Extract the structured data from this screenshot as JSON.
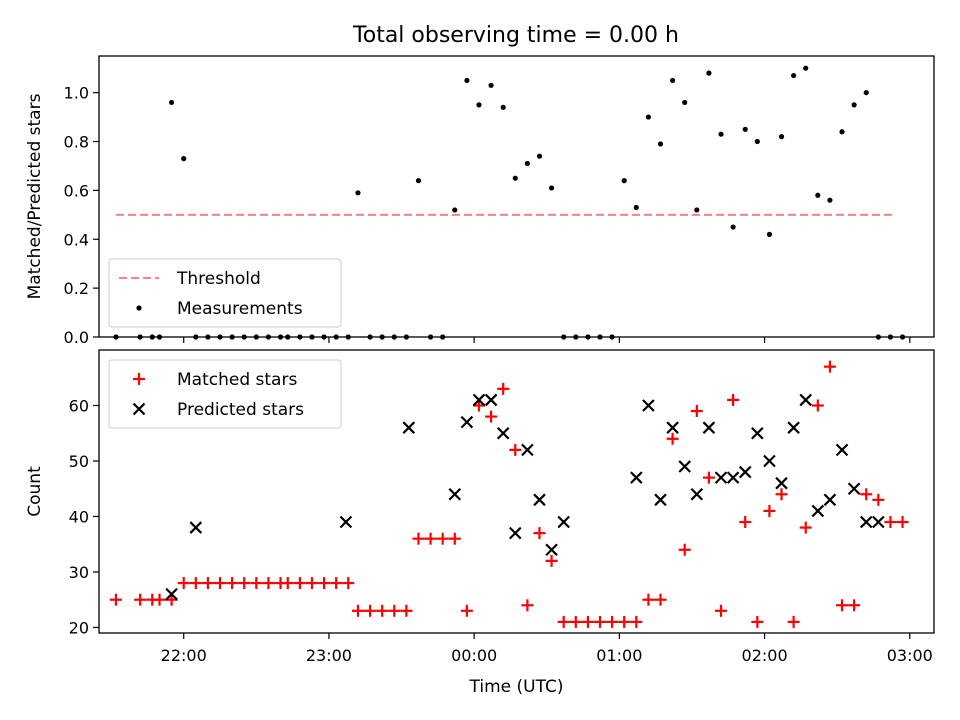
{
  "chart_data": [
    {
      "type": "scatter",
      "title": "Total observing time = 0.00 h",
      "xlabel": "",
      "ylabel": "Matched/Predicted stars",
      "xlim": [
        "21:25",
        "03:10"
      ],
      "ylim": [
        0,
        1.15
      ],
      "yticks": [
        "0.0",
        "0.2",
        "0.4",
        "0.6",
        "0.8",
        "1.0"
      ],
      "xticks": [
        "22:00",
        "23:00",
        "00:00",
        "01:00",
        "02:00",
        "03:00"
      ],
      "grid": false,
      "legend_position": "lower-left",
      "threshold": {
        "name": "Threshold",
        "value": 0.5,
        "x_range": [
          "21:32",
          "02:54"
        ],
        "color": "#ff8080",
        "style": "dashed"
      },
      "series": [
        {
          "name": "Measurements",
          "color": "#000000",
          "marker": "dot",
          "x": [
            "21:32",
            "21:42",
            "21:47",
            "21:50",
            "21:55",
            "22:00",
            "22:05",
            "22:10",
            "22:15",
            "22:20",
            "22:25",
            "22:30",
            "22:35",
            "22:40",
            "22:43",
            "22:48",
            "22:53",
            "22:58",
            "23:03",
            "23:08",
            "23:12",
            "23:17",
            "23:22",
            "23:27",
            "23:32",
            "23:37",
            "23:42",
            "23:47",
            "23:52",
            "23:57",
            "00:02",
            "00:07",
            "00:12",
            "00:17",
            "00:22",
            "00:27",
            "00:32",
            "00:37",
            "00:42",
            "00:47",
            "00:52",
            "00:57",
            "01:02",
            "01:07",
            "01:12",
            "01:17",
            "01:22",
            "01:27",
            "01:32",
            "01:37",
            "01:42",
            "01:47",
            "01:52",
            "01:57",
            "02:02",
            "02:07",
            "02:12",
            "02:17",
            "02:22",
            "02:27",
            "02:32",
            "02:37",
            "02:42",
            "02:47",
            "02:52",
            "02:57"
          ],
          "y": [
            0,
            0,
            0,
            0,
            0.96,
            0.73,
            0,
            0,
            0,
            0,
            0,
            0,
            0,
            0,
            0,
            0,
            0,
            0,
            0,
            0,
            0.59,
            0,
            0,
            0,
            0,
            0.64,
            0,
            0,
            0.52,
            1.05,
            0.95,
            1.03,
            0.94,
            0.65,
            0.71,
            0.74,
            0.61,
            0,
            0,
            0,
            0,
            0,
            0.64,
            0.53,
            0.9,
            0.79,
            1.05,
            0.96,
            0.52,
            1.08,
            0.83,
            0.45,
            0.85,
            0.8,
            0.42,
            0.82,
            1.07,
            1.1,
            0.58,
            0.56,
            0.84,
            0.95,
            1.0,
            0,
            0,
            0
          ]
        }
      ]
    },
    {
      "type": "scatter",
      "title": "",
      "xlabel": "Time (UTC)",
      "ylabel": "Count",
      "xlim": [
        "21:25",
        "03:10"
      ],
      "ylim": [
        19,
        70
      ],
      "yticks": [
        "20",
        "30",
        "40",
        "50",
        "60"
      ],
      "xticks": [
        "22:00",
        "23:00",
        "00:00",
        "01:00",
        "02:00",
        "03:00"
      ],
      "grid": false,
      "legend_position": "upper-left",
      "series": [
        {
          "name": "Matched stars",
          "color": "#ff0000",
          "marker": "plus",
          "x": [
            "21:32",
            "21:42",
            "21:47",
            "21:50",
            "21:55",
            "22:00",
            "22:05",
            "22:10",
            "22:15",
            "22:20",
            "22:25",
            "22:30",
            "22:35",
            "22:40",
            "22:43",
            "22:48",
            "22:53",
            "22:58",
            "23:03",
            "23:08",
            "23:12",
            "23:17",
            "23:22",
            "23:27",
            "23:32",
            "23:37",
            "23:42",
            "23:47",
            "23:52",
            "23:57",
            "00:02",
            "00:07",
            "00:12",
            "00:17",
            "00:22",
            "00:27",
            "00:32",
            "00:37",
            "00:42",
            "00:47",
            "00:52",
            "00:57",
            "01:02",
            "01:07",
            "01:12",
            "01:17",
            "01:22",
            "01:27",
            "01:32",
            "01:37",
            "01:42",
            "01:47",
            "01:52",
            "01:57",
            "02:02",
            "02:07",
            "02:12",
            "02:17",
            "02:22",
            "02:27",
            "02:32",
            "02:37",
            "02:42",
            "02:47",
            "02:52",
            "02:57"
          ],
          "y": [
            25,
            25,
            25,
            25,
            25,
            28,
            28,
            28,
            28,
            28,
            28,
            28,
            28,
            28,
            28,
            28,
            28,
            28,
            28,
            28,
            23,
            23,
            23,
            23,
            23,
            36,
            36,
            36,
            36,
            23,
            60,
            58,
            63,
            52,
            24,
            37,
            32,
            21,
            21,
            21,
            21,
            21,
            21,
            21,
            25,
            25,
            54,
            34,
            59,
            47,
            23,
            61,
            39,
            21,
            41,
            44,
            21,
            38,
            60,
            67,
            24,
            24,
            44,
            43,
            39,
            39
          ]
        },
        {
          "name": "Predicted stars",
          "color": "#000000",
          "marker": "x",
          "x": [
            "21:55",
            "22:05",
            "23:07",
            "23:33",
            "23:52",
            "23:57",
            "00:02",
            "00:07",
            "00:12",
            "00:17",
            "00:22",
            "00:27",
            "00:32",
            "00:37",
            "01:07",
            "01:12",
            "01:17",
            "01:22",
            "01:27",
            "01:32",
            "01:37",
            "01:42",
            "01:47",
            "01:52",
            "01:57",
            "02:02",
            "02:07",
            "02:12",
            "02:17",
            "02:22",
            "02:27",
            "02:32",
            "02:37",
            "02:42",
            "02:47"
          ],
          "y": [
            26,
            38,
            39,
            56,
            44,
            57,
            61,
            61,
            55,
            37,
            52,
            43,
            34,
            39,
            47,
            60,
            43,
            56,
            49,
            44,
            56,
            47,
            47,
            48,
            55,
            50,
            46,
            56,
            61,
            41,
            43,
            52,
            45,
            39,
            39
          ]
        }
      ]
    }
  ]
}
